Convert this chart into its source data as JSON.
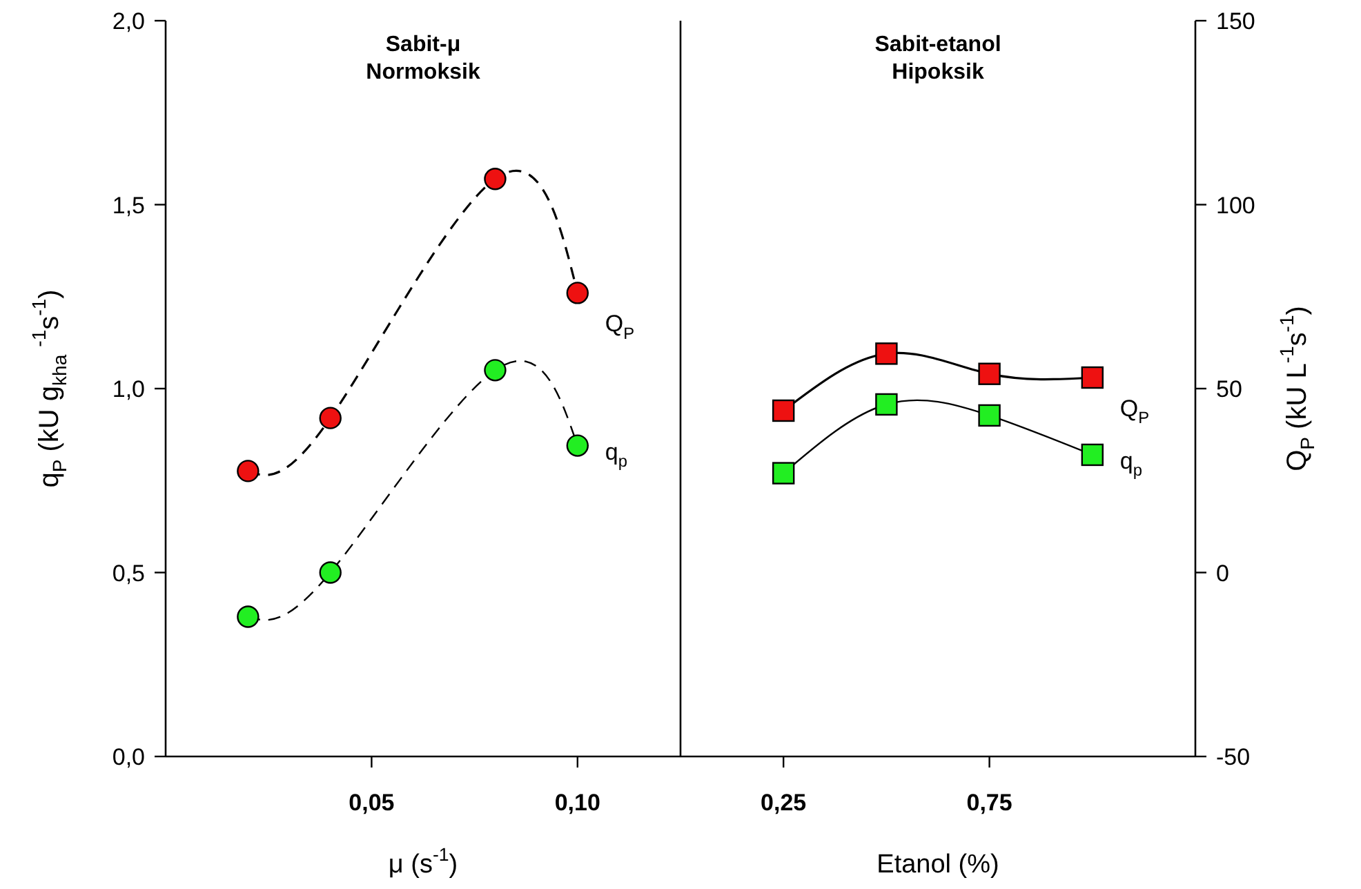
{
  "chart_data": [
    {
      "type": "line",
      "title": "Sabit-μ\nNormoksik",
      "xlabel": "μ (s$^{-1}$)",
      "ylabel": "q$_{P}$ (kU g$_{kha}$ $^{-1}$s$^{-1}$)",
      "x": [
        0.02,
        0.04,
        0.08,
        0.1
      ],
      "xlim": [
        0,
        0.125
      ],
      "xticks": [
        {
          "value": 0.05,
          "label": "0,05"
        },
        {
          "value": 0.1,
          "label": "0,10"
        }
      ],
      "ylim": [
        0,
        2
      ],
      "yticks": [
        {
          "value": 0,
          "label": "0,0"
        },
        {
          "value": 0.5,
          "label": "0,5"
        },
        {
          "value": 1,
          "label": "1,0"
        },
        {
          "value": 1.5,
          "label": "1,5"
        },
        {
          "value": 2,
          "label": "2,0"
        }
      ],
      "y2lim": [
        -50,
        150
      ],
      "tick_labels": "xy",
      "marker": "circle",
      "line_style": "dashed",
      "series": [
        {
          "name": "Q$_{P}$",
          "color": "#ee1111",
          "axis": "y2",
          "values": [
            27.6,
            42,
            107,
            76
          ]
        },
        {
          "name": "q$_{p}$",
          "color": "#22ee22",
          "values": [
            0.38,
            0.5,
            1.05,
            0.845
          ]
        }
      ]
    },
    {
      "type": "line",
      "title": "Sabit-etanol\nHipoksik",
      "xlabel": "Etanol (%)",
      "y2label": "Q$_{P}$ (kU L$^{-1}$s$^{-1}$)",
      "x": [
        0.25,
        0.5,
        0.75,
        1.0
      ],
      "xlim": [
        0,
        1.25
      ],
      "xticks": [
        {
          "value": 0.25,
          "label": "0,25"
        },
        {
          "value": 0.75,
          "label": "0,75"
        }
      ],
      "ylim": [
        0,
        2
      ],
      "y2lim": [
        -50,
        150
      ],
      "y2ticks": [
        -50,
        0,
        50,
        100,
        150
      ],
      "tick_labels": "xy2",
      "marker": "square",
      "line_style": "solid",
      "series": [
        {
          "name": "Q$_{P}$",
          "color": "#ee1111",
          "axis": "y2",
          "values": [
            44,
            59.5,
            54,
            53
          ]
        },
        {
          "name": "q$_{p}$",
          "color": "#22ee22",
          "values": [
            0.77,
            0.957,
            0.927,
            0.82
          ]
        }
      ]
    }
  ]
}
